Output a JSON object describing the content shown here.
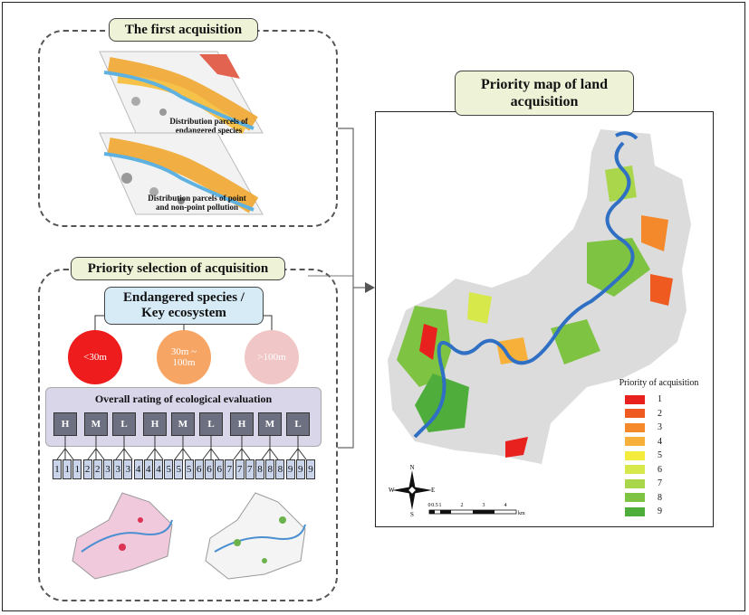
{
  "left_top": {
    "title": "The first acquisition",
    "map1_caption_line1": "Distribution parcels of",
    "map1_caption_line2": "endangered species",
    "map2_caption_line1": "Distribution parcels of point",
    "map2_caption_line2": "and non-point pollution"
  },
  "left_bottom": {
    "title": "Priority selection of acquisition",
    "species_line1": "Endangered species /",
    "species_line2": "Key ecosystem",
    "circles": [
      {
        "label": "<30m",
        "color": "#ee1c1c"
      },
      {
        "label": "30m ~ 100m",
        "color": "#f6a565"
      },
      {
        "label": ">100m",
        "color": "#f1c6c6"
      }
    ],
    "rating_title": "Overall rating of ecological evaluation",
    "hml": [
      "H",
      "M",
      "L",
      "H",
      "M",
      "L",
      "H",
      "M",
      "L"
    ],
    "numbers": [
      "1",
      "1",
      "1",
      "2",
      "2",
      "3",
      "3",
      "3",
      "4",
      "4",
      "4",
      "5",
      "5",
      "5",
      "6",
      "6",
      "6",
      "7",
      "7",
      "7",
      "8",
      "8",
      "8",
      "9",
      "9",
      "9"
    ]
  },
  "right": {
    "title_line1": "Priority map of land",
    "title_line2": "acquisition",
    "legend_title": "Priority of acquisition",
    "legend": [
      {
        "label": "1",
        "color": "#e8211f"
      },
      {
        "label": "2",
        "color": "#ef5a20"
      },
      {
        "label": "3",
        "color": "#f3892b"
      },
      {
        "label": "4",
        "color": "#f7b03a"
      },
      {
        "label": "5",
        "color": "#f4ec3c"
      },
      {
        "label": "6",
        "color": "#d6e84a"
      },
      {
        "label": "7",
        "color": "#a9d64a"
      },
      {
        "label": "8",
        "color": "#7fc342"
      },
      {
        "label": "9",
        "color": "#4fad3b"
      }
    ],
    "scale_labels": [
      "0",
      "0.5",
      "1",
      "2",
      "3",
      "4"
    ],
    "scale_unit": "km",
    "compass": {
      "n": "N",
      "s": "S",
      "e": "E",
      "w": "W"
    }
  }
}
